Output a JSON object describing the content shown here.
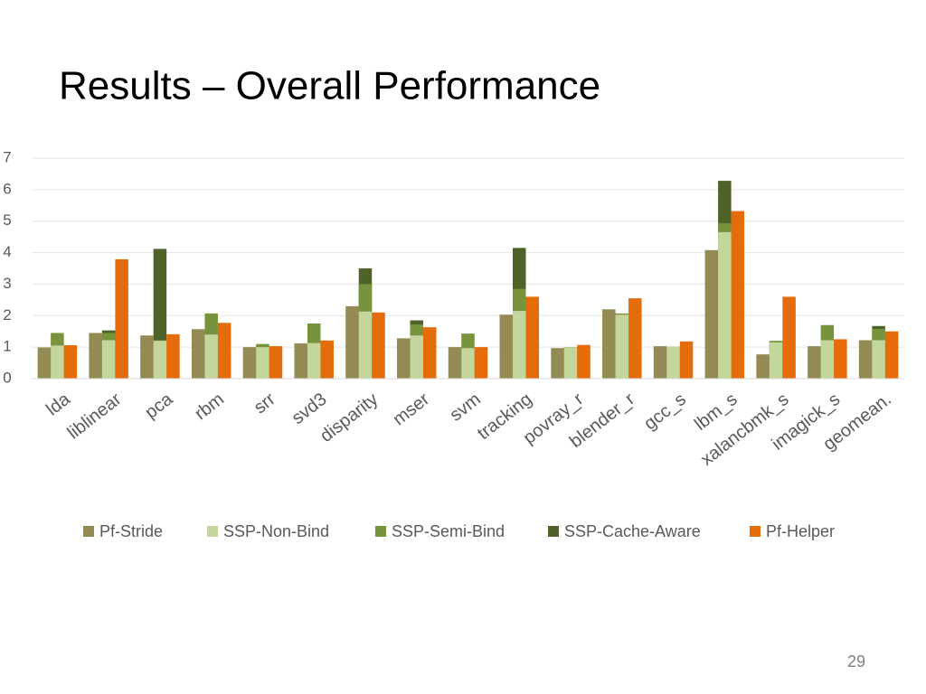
{
  "page_number": "29",
  "chart_data": {
    "type": "bar",
    "title": "Results – Overall Performance",
    "categories": [
      "lda",
      "liblinear",
      "pca",
      "rbm",
      "srr",
      "svd3",
      "disparity",
      "mser",
      "svm",
      "tracking",
      "povray_r",
      "blender_r",
      "gcc_s",
      "lbm_s",
      "xalancbmk_s",
      "imagick_s",
      "geomean."
    ],
    "series": [
      {
        "name": "Pf-Stride",
        "color": "#948a54",
        "values": [
          0.99,
          1.45,
          1.37,
          1.57,
          1.0,
          1.12,
          2.3,
          1.28,
          1.0,
          2.03,
          0.97,
          2.2,
          1.03,
          4.08,
          0.77,
          1.03,
          1.22
        ]
      },
      {
        "name": "SSP-Non-Bind",
        "color": "#c3d69b",
        "values": [
          1.05,
          1.22,
          1.2,
          1.4,
          1.0,
          1.13,
          2.13,
          1.37,
          0.97,
          2.15,
          1.0,
          2.03,
          1.02,
          4.65,
          1.15,
          1.22,
          1.22
        ]
      },
      {
        "name": "SSP-Semi-Bind",
        "color": "#77933c",
        "values": [
          1.45,
          1.45,
          1.22,
          2.07,
          1.1,
          1.75,
          3.0,
          1.72,
          1.43,
          2.85,
          1.0,
          2.07,
          1.02,
          4.93,
          1.2,
          1.7,
          1.58
        ]
      },
      {
        "name": "SSP-Cache-Aware",
        "color": "#4f6228",
        "values": [
          1.0,
          1.53,
          4.12,
          1.5,
          1.05,
          1.2,
          3.5,
          1.85,
          1.0,
          4.15,
          1.0,
          2.0,
          1.0,
          6.28,
          1.18,
          1.2,
          1.67
        ]
      },
      {
        "name": "Pf-Helper",
        "color": "#e46c0a",
        "values": [
          1.06,
          3.79,
          1.41,
          1.77,
          1.03,
          1.21,
          2.1,
          1.63,
          1.0,
          2.6,
          1.07,
          2.55,
          1.18,
          5.32,
          2.6,
          1.25,
          1.5
        ]
      }
    ],
    "ylim": [
      0,
      7
    ],
    "yticks": [
      0,
      1,
      2,
      3,
      4,
      5,
      6,
      7
    ],
    "grid": true
  }
}
